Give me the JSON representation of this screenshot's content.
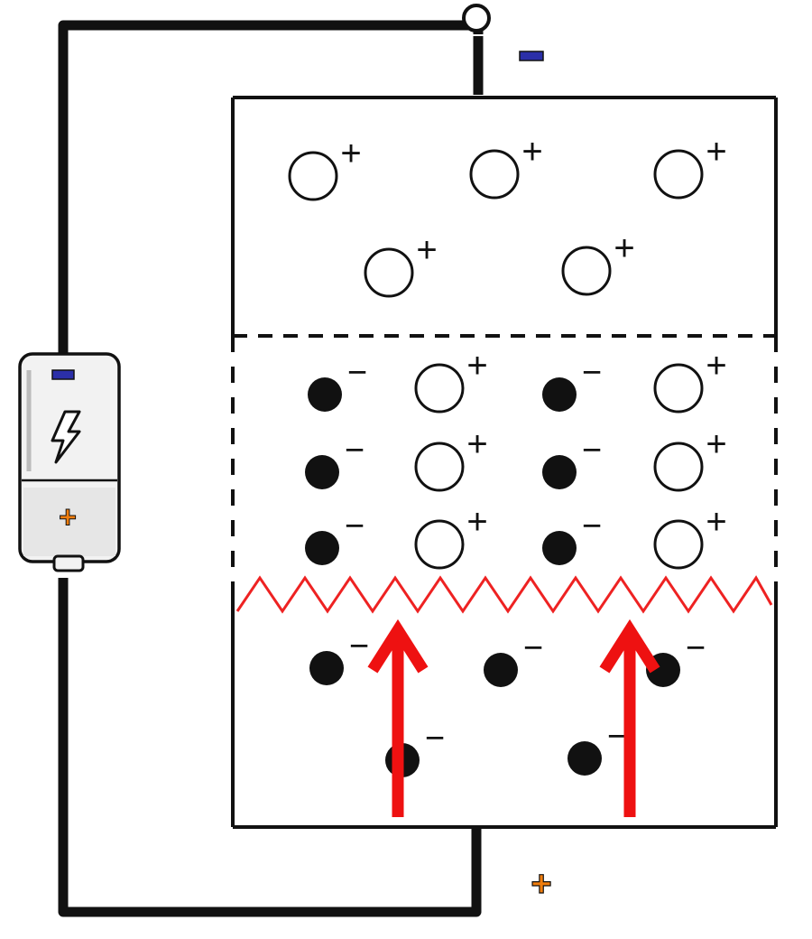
{
  "labels": {
    "terminal_top": "−",
    "terminal_bottom": "+",
    "battery_negative": "−",
    "battery_positive": "+",
    "hole_charge": "+",
    "electron_charge": "−"
  },
  "colors": {
    "wire": "#111111",
    "outline": "#111111",
    "junction": "#ee2222",
    "arrow": "#ee1111",
    "negative_mark": "#2b2fa8",
    "positive_mark": "#f07d0d",
    "battery_body": "#f2f2f2"
  },
  "icons": {
    "battery": "battery-icon",
    "lightning": "lightning-icon",
    "terminal": "terminal-circle-icon"
  },
  "regions": [
    {
      "name": "top-region",
      "carriers": "holes",
      "boundary": "solid"
    },
    {
      "name": "depletion-region",
      "carriers": "holes-and-electrons",
      "boundary": "dashed"
    },
    {
      "name": "bottom-region",
      "carriers": "electrons",
      "boundary": "solid"
    }
  ],
  "arrows": {
    "count": 2,
    "direction": "up"
  }
}
